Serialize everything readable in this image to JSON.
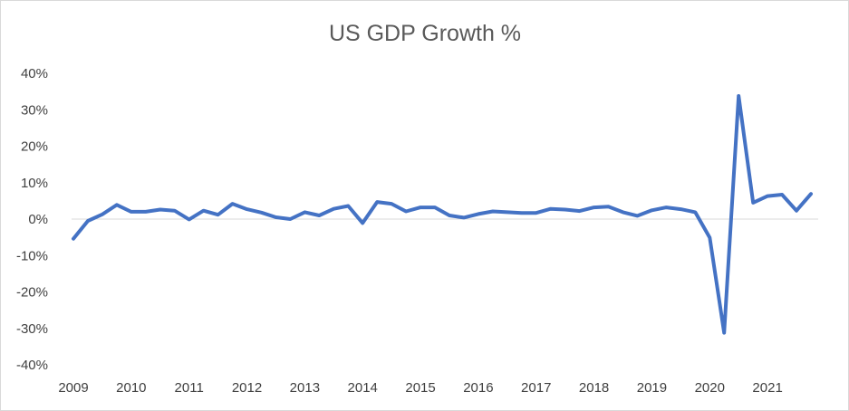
{
  "chart_data": {
    "type": "line",
    "title": "US GDP Growth %",
    "xlabel": "",
    "ylabel": "",
    "ylim": [
      -40,
      40
    ],
    "yticks": [
      40,
      30,
      20,
      10,
      0,
      -10,
      -20,
      -30,
      -40
    ],
    "ytick_labels": [
      "40%",
      "30%",
      "20%",
      "10%",
      "0%",
      "-10%",
      "-20%",
      "-30%",
      "-40%"
    ],
    "xtick_labels": [
      "2009",
      "2010",
      "2011",
      "2012",
      "2013",
      "2014",
      "2015",
      "2016",
      "2017",
      "2018",
      "2019",
      "2020",
      "2021"
    ],
    "line_color": "#4472c4",
    "axis_color": "#d9d9d9",
    "series": [
      {
        "name": "US GDP Growth %",
        "x": [
          "2009 Q1",
          "2009 Q2",
          "2009 Q3",
          "2009 Q4",
          "2010 Q1",
          "2010 Q2",
          "2010 Q3",
          "2010 Q4",
          "2011 Q1",
          "2011 Q2",
          "2011 Q3",
          "2011 Q4",
          "2012 Q1",
          "2012 Q2",
          "2012 Q3",
          "2012 Q4",
          "2013 Q1",
          "2013 Q2",
          "2013 Q3",
          "2013 Q4",
          "2014 Q1",
          "2014 Q2",
          "2014 Q3",
          "2014 Q4",
          "2015 Q1",
          "2015 Q2",
          "2015 Q3",
          "2015 Q4",
          "2016 Q1",
          "2016 Q2",
          "2016 Q3",
          "2016 Q4",
          "2017 Q1",
          "2017 Q2",
          "2017 Q3",
          "2017 Q4",
          "2018 Q1",
          "2018 Q2",
          "2018 Q3",
          "2018 Q4",
          "2019 Q1",
          "2019 Q2",
          "2019 Q3",
          "2019 Q4",
          "2020 Q1",
          "2020 Q2",
          "2020 Q3",
          "2020 Q4",
          "2021 Q1",
          "2021 Q2",
          "2021 Q3",
          "2021 Q4"
        ],
        "values": [
          -5.4,
          -0.5,
          1.3,
          3.9,
          2.0,
          2.0,
          2.6,
          2.3,
          -0.1,
          2.3,
          1.2,
          4.2,
          2.7,
          1.8,
          0.5,
          0.0,
          1.9,
          1.0,
          2.8,
          3.6,
          -1.1,
          4.7,
          4.2,
          2.1,
          3.2,
          3.2,
          1.0,
          0.4,
          1.4,
          2.1,
          1.9,
          1.7,
          1.7,
          2.8,
          2.6,
          2.2,
          3.2,
          3.4,
          1.9,
          0.9,
          2.4,
          3.2,
          2.7,
          1.9,
          -5.1,
          -31.2,
          33.8,
          4.5,
          6.3,
          6.7,
          2.3,
          6.9
        ]
      }
    ]
  }
}
